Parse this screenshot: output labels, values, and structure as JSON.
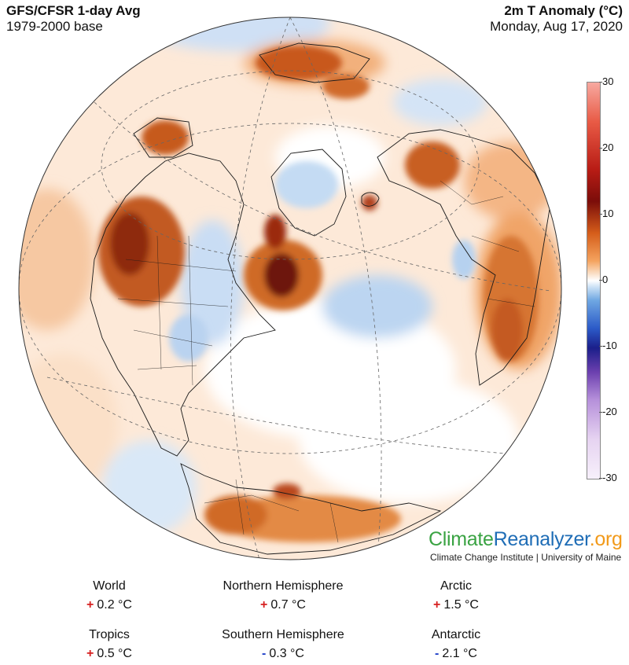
{
  "header": {
    "left_title": "GFS/CFSR 1-day Avg",
    "left_subtitle": "1979-2000 base",
    "right_title": "2m T Anomaly (°C)",
    "right_date": "Monday, Aug 17, 2020"
  },
  "colorbar": {
    "ticks": [
      "30",
      "20",
      "10",
      "0",
      "-10",
      "-20",
      "-30"
    ],
    "range": [
      -30,
      30
    ]
  },
  "map": {
    "projection": "orthographic-north-atlantic",
    "colors": {
      "warm_strong": "#8b1a0c",
      "warm": "#d9641f",
      "warm_light": "#f3b887",
      "warm_faint": "#fbe2cc",
      "neutral": "#ffffff",
      "cool_faint": "#dbe9f7",
      "cool": "#a9c8ee",
      "boundary": "#1a1a1a"
    }
  },
  "brand": {
    "part1": "Climate",
    "part2": "Reanalyzer",
    "part3": ".org",
    "subtitle": "Climate Change Institute | University of Maine"
  },
  "stats": [
    {
      "label": "World",
      "sign": "+",
      "value": "0.2 °C"
    },
    {
      "label": "Northern Hemisphere",
      "sign": "+",
      "value": "0.7 °C"
    },
    {
      "label": "Arctic",
      "sign": "+",
      "value": "1.5 °C"
    },
    {
      "label": "Tropics",
      "sign": "+",
      "value": "0.5 °C"
    },
    {
      "label": "Southern Hemisphere",
      "sign": "-",
      "value": "0.3 °C"
    },
    {
      "label": "Antarctic",
      "sign": "-",
      "value": "2.1 °C"
    }
  ]
}
